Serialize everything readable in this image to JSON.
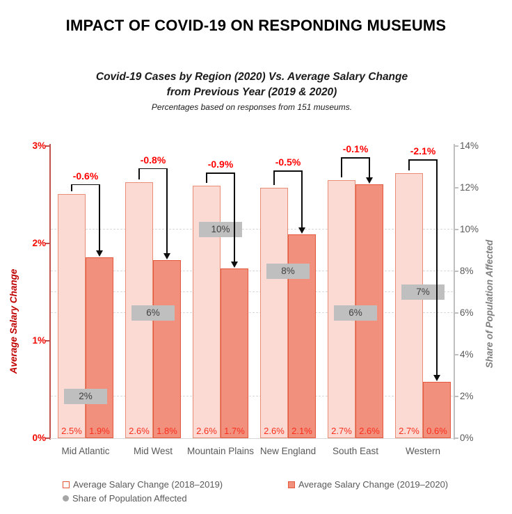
{
  "page": {
    "title": "IMPACT OF COVID-19 ON RESPONDING MUSEUMS"
  },
  "chart_data": {
    "type": "bar",
    "title_line1": "Covid-19 Cases by Region (2020) Vs. Average Salary Change",
    "title_line2": "from Previous Year (2019 & 2020)",
    "subtitle": "Percentages based on responses from 151 museums.",
    "categories": [
      "Mid Atlantic",
      "Mid West",
      "Mountain Plains",
      "New England",
      "South East",
      "Western"
    ],
    "left_axis": {
      "title": "Average Salary Change",
      "ticks": [
        "0%",
        "1%",
        "2%",
        "3%"
      ],
      "range": [
        0,
        3
      ]
    },
    "right_axis": {
      "title": "Share of Population Affected",
      "ticks": [
        "0%",
        "2%",
        "4%",
        "6%",
        "8%",
        "10%",
        "12%",
        "14%"
      ],
      "range": [
        0,
        14
      ]
    },
    "series": [
      {
        "name": "Average Salary Change (2018–2019)",
        "axis": "left",
        "labels": [
          "2.5%",
          "2.6%",
          "2.6%",
          "2.6%",
          "2.7%",
          "2.7%"
        ],
        "values": [
          2.5,
          2.6,
          2.6,
          2.6,
          2.7,
          2.7
        ],
        "plotted": [
          2.51,
          2.63,
          2.59,
          2.57,
          2.65,
          2.72
        ]
      },
      {
        "name": "Average Salary Change (2019–2020)",
        "axis": "left",
        "labels": [
          "1.9%",
          "1.8%",
          "1.7%",
          "2.1%",
          "2.6%",
          "0.6%"
        ],
        "values": [
          1.9,
          1.8,
          1.7,
          2.1,
          2.6,
          0.6
        ],
        "plotted": [
          1.86,
          1.83,
          1.74,
          2.09,
          2.61,
          0.58
        ]
      },
      {
        "name": "Share of Population Affected",
        "axis": "right",
        "labels": [
          "2%",
          "6%",
          "10%",
          "8%",
          "6%",
          "7%"
        ],
        "values": [
          2,
          6,
          10,
          8,
          6,
          7
        ]
      }
    ],
    "annotations": {
      "labels": [
        "-0.6%",
        "-0.8%",
        "-0.9%",
        "-0.5%",
        "-0.1%",
        "-2.1%"
      ]
    },
    "legend": [
      "Average Salary Change (2018–2019)",
      "Average Salary Change (2019–2020)",
      "Share of Population Affected"
    ],
    "grid": "dashed horizontal lines at share-of-population values",
    "legend_position": "bottom-left, two rows"
  },
  "colors": {
    "light_fill": "#FBDAD3",
    "light_border": "#E98C76",
    "dark_fill": "#F2907E",
    "dark_border": "#E4573B",
    "axis_left": "#C0504D",
    "tick_red": "#F20800",
    "axis_title_left": "#C00000",
    "axis_right": "#BFBFBF",
    "right_text": "#595959",
    "axis_title_right": "#7F7F7F",
    "gray_box": "#BFBFBF",
    "gray_text": "#3F3F3F",
    "category": "#595959",
    "legend_text": "#595959",
    "annotation": "#FF0000",
    "bar_label": "#FA2E1B",
    "grid": "#D9D9D9",
    "baseline": "#D9D9D9",
    "share_marker": "#A6A6A6",
    "arrow": "#0D0D0D"
  }
}
